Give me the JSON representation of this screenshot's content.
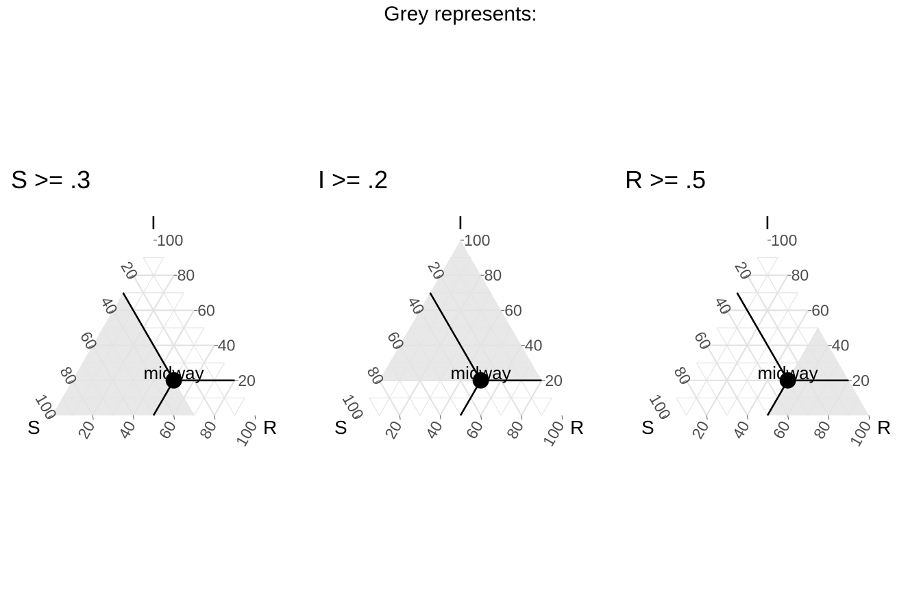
{
  "title": "Grey represents:",
  "chart_data": {
    "type": "ternary",
    "axes": [
      "S",
      "I",
      "R"
    ],
    "ticks": [
      20,
      40,
      60,
      80,
      100
    ],
    "colors": {
      "shade": "#e8e8e8",
      "grid": "#e3e3e3",
      "point": "#000000"
    },
    "panels": [
      {
        "title": "S >= .3",
        "shaded_axis": "S",
        "threshold": 0.3
      },
      {
        "title": "I >= .2",
        "shaded_axis": "I",
        "threshold": 0.2
      },
      {
        "title": "R >= .5",
        "shaded_axis": "R",
        "threshold": 0.5
      }
    ],
    "point": {
      "label": "midway",
      "S": 0.3,
      "I": 0.2,
      "R": 0.5
    }
  }
}
